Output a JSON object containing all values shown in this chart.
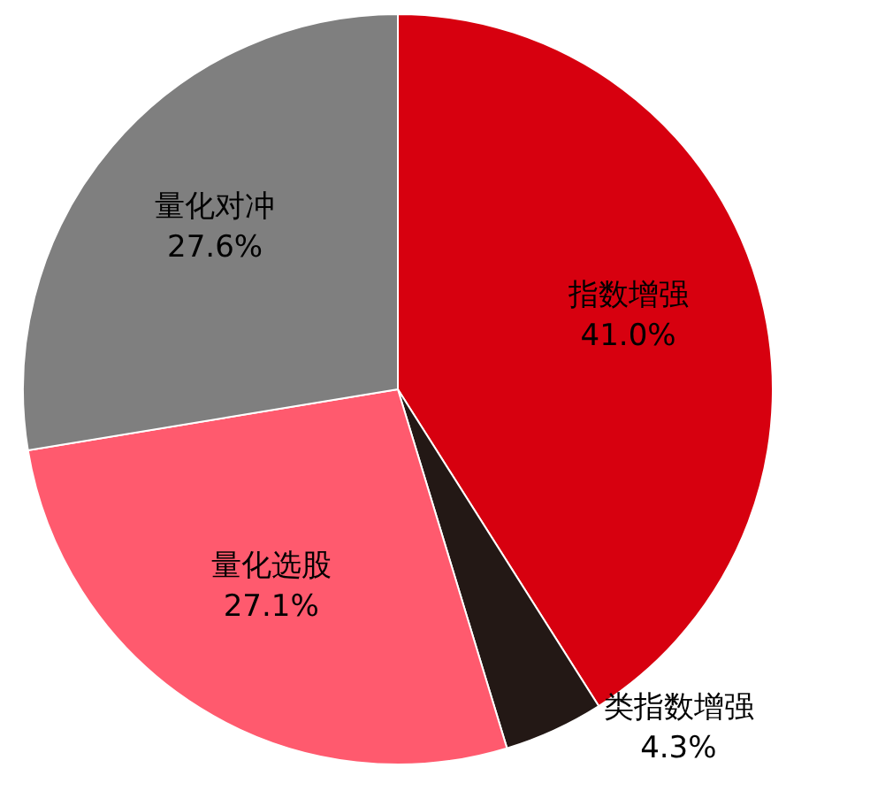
{
  "chart_data": {
    "type": "pie",
    "categories": [
      "指数增强",
      "类指数增强",
      "量化选股",
      "量化对冲"
    ],
    "values": [
      41.0,
      4.3,
      27.1,
      27.6
    ],
    "colors": [
      "#d7000f",
      "#231815",
      "#ff5a6e",
      "#7f7f7f"
    ],
    "value_labels": [
      "41.0%",
      "4.3%",
      "27.1%",
      "27.6%"
    ]
  }
}
